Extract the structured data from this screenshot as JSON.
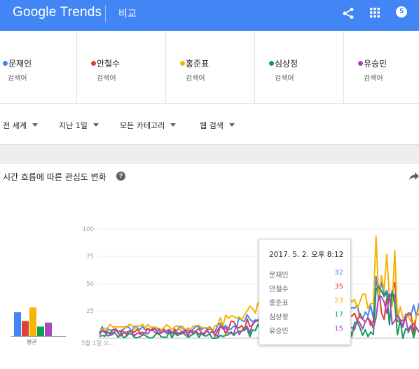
{
  "header": {
    "logo_google": "Google",
    "logo_trends": "Trends",
    "title": "비교",
    "avatar_label": "5",
    "background_color": "#4285f4"
  },
  "terms": [
    {
      "name": "문재인",
      "sub": "검색어",
      "color": "#4285f4"
    },
    {
      "name": "안철수",
      "sub": "검색어",
      "color": "#db4437"
    },
    {
      "name": "홍준표",
      "sub": "검색어",
      "color": "#f4b400"
    },
    {
      "name": "심상정",
      "sub": "검색어",
      "color": "#0f9d58"
    },
    {
      "name": "유승민",
      "sub": "검색어",
      "color": "#ab47bc"
    }
  ],
  "filters": {
    "region": "전 세계",
    "time": "지난 1일",
    "category": "모든 카테고리",
    "search_type": "웹 검색"
  },
  "card": {
    "title": "시간 흐름에 따른 관심도 변화",
    "help": "?"
  },
  "average": {
    "label": "평균"
  },
  "chart_data": {
    "type": "line",
    "ylim": [
      0,
      100
    ],
    "y_ticks": [
      "100",
      "75",
      "50",
      "25"
    ],
    "x_tick_label": "5월 1일 오...",
    "series": [
      {
        "name": "문재인",
        "color": "#4285f4",
        "average": 30
      },
      {
        "name": "안철수",
        "color": "#db4437",
        "average": 19
      },
      {
        "name": "홍준표",
        "color": "#f4b400",
        "average": 36
      },
      {
        "name": "심상정",
        "color": "#0f9d58",
        "average": 12
      },
      {
        "name": "유승민",
        "color": "#ab47bc",
        "average": 17
      }
    ]
  },
  "tooltip": {
    "date": "2017. 5. 2. 오후 8:12",
    "rows": [
      {
        "name": "문재인",
        "value": "32",
        "color": "#4285f4"
      },
      {
        "name": "안철수",
        "value": "35",
        "color": "#db4437"
      },
      {
        "name": "홍준표",
        "value": "23",
        "color": "#f4b400"
      },
      {
        "name": "심상정",
        "value": "17",
        "color": "#0f9d58"
      },
      {
        "name": "유승민",
        "value": "15",
        "color": "#ab47bc"
      }
    ]
  }
}
